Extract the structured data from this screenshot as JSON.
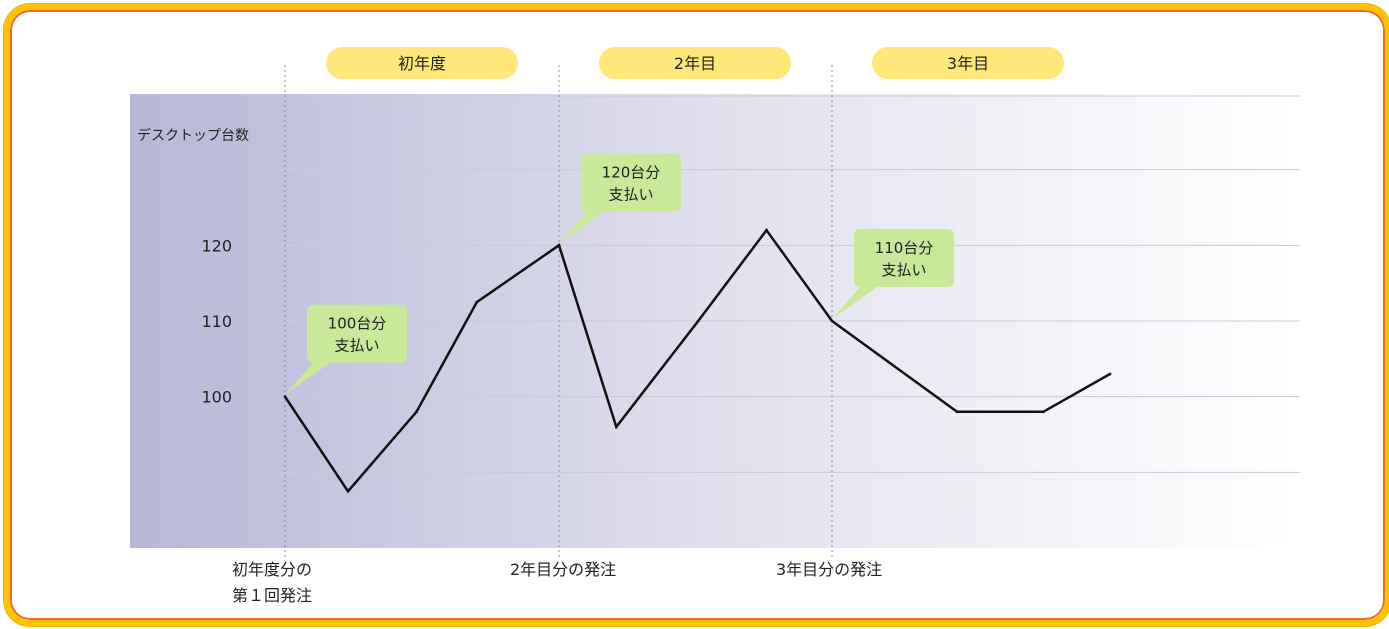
{
  "chart_data": {
    "type": "line",
    "title": "",
    "ylabel": "デスクトップ台数",
    "yticks": [
      100,
      110,
      120
    ],
    "periods": [
      "初年度",
      "2年目",
      "3年目"
    ],
    "orders": [
      {
        "id": "o1",
        "lines": [
          "初年度分の",
          "第１回発注"
        ]
      },
      {
        "id": "o2",
        "lines": [
          "2年目分の発注"
        ]
      },
      {
        "id": "o3",
        "lines": [
          "3年目分の発注"
        ]
      }
    ],
    "series": [
      {
        "name": "",
        "points": [
          [
            0.0,
            100
          ],
          [
            0.23,
            87.5
          ],
          [
            0.48,
            98
          ],
          [
            0.7,
            112.5
          ],
          [
            1.0,
            120
          ],
          [
            1.21,
            96
          ],
          [
            1.51,
            110
          ],
          [
            1.76,
            122
          ],
          [
            2.0,
            110
          ],
          [
            2.45,
            98
          ],
          [
            2.76,
            98
          ],
          [
            3.0,
            103
          ]
        ]
      }
    ],
    "callouts": [
      {
        "lines": [
          "100台分",
          "支払い"
        ],
        "x": 0.0,
        "y": 100
      },
      {
        "lines": [
          "120台分",
          "支払い"
        ],
        "x": 1.0,
        "y": 120
      },
      {
        "lines": [
          "110台分",
          "支払い"
        ],
        "x": 2.0,
        "y": 110
      }
    ],
    "ylim": [
      80,
      140
    ],
    "grid": true,
    "colors": {
      "line": "#111111",
      "grid": "#c9cad8",
      "plot_bg_left": "#b7b7d8",
      "plot_bg_right": "#ffffff",
      "period_badge": "#ffe77a",
      "callout": "#c8e89a",
      "frame_outer": "#ffc400",
      "frame_inner": "#f26a2b",
      "divider": "#8a8ab8"
    }
  }
}
